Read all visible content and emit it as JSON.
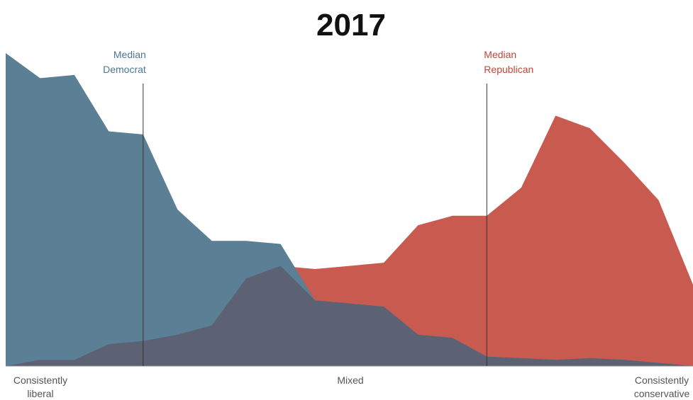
{
  "chart_data": {
    "type": "area",
    "title": "2017",
    "x": [
      0,
      1,
      2,
      3,
      4,
      5,
      6,
      7,
      8,
      9,
      10,
      11,
      12,
      13,
      14,
      15,
      16,
      17,
      18,
      19,
      20
    ],
    "series": [
      {
        "name": "Democrats",
        "values": [
          10.0,
          9.2,
          9.3,
          7.5,
          7.4,
          5.0,
          4.0,
          4.0,
          3.9,
          2.1,
          2.0,
          1.9,
          1.0,
          0.9,
          0.3,
          0.25,
          0.2,
          0.25,
          0.2,
          0.1,
          0.0
        ],
        "color": "#5b7f94"
      },
      {
        "name": "Republicans",
        "values": [
          0.0,
          0.2,
          0.2,
          0.7,
          0.8,
          1.0,
          1.3,
          2.8,
          3.2,
          3.1,
          3.2,
          3.3,
          4.5,
          4.8,
          4.8,
          5.7,
          8.0,
          7.6,
          6.5,
          5.3,
          2.6
        ],
        "color": "#c85a4f"
      }
    ],
    "overlap_color": "#5c6274",
    "ylim": [
      0,
      10
    ],
    "xlim": [
      0,
      20
    ],
    "medians": [
      {
        "label_line1": "Median",
        "label_line2": "Democrat",
        "x": 4,
        "color": "#4d7690"
      },
      {
        "label_line1": "Median",
        "label_line2": "Republican",
        "x": 14,
        "color": "#c0463a"
      }
    ],
    "axis_labels": {
      "left_line1": "Consistently",
      "left_line2": "liberal",
      "center": "Mixed",
      "right_line1": "Consistently",
      "right_line2": "conservative"
    },
    "grid": false,
    "legend": "none"
  }
}
